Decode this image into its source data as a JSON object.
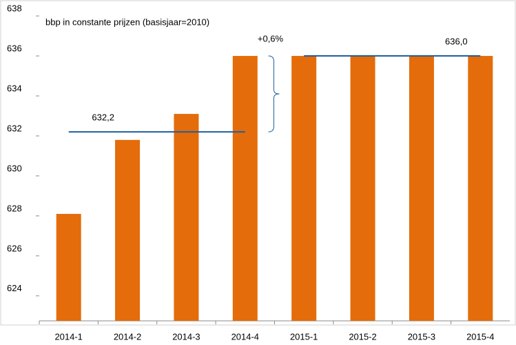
{
  "chart_data": {
    "type": "bar",
    "title": "bbp in constante prijzen (basisjaar=2010)",
    "categories": [
      "2014-1",
      "2014-2",
      "2014-3",
      "2014-4",
      "2015-1",
      "2015-2",
      "2015-3",
      "2015-4"
    ],
    "values": [
      628.1,
      631.8,
      633.1,
      636.0,
      636.0,
      636.0,
      636.0,
      636.0
    ],
    "color": "#e46c0a",
    "ylim": [
      622.75,
      637.9
    ],
    "yticks": [
      624,
      626,
      628,
      630,
      632,
      634,
      636,
      638
    ],
    "grid": false,
    "reference_lines": [
      {
        "value": 632.2,
        "label": "632,2",
        "color": "#1f5f9f"
      },
      {
        "value": 636.0,
        "label": "636,0",
        "color": "#1f5f9f"
      }
    ],
    "change_label": "+0,6%"
  }
}
